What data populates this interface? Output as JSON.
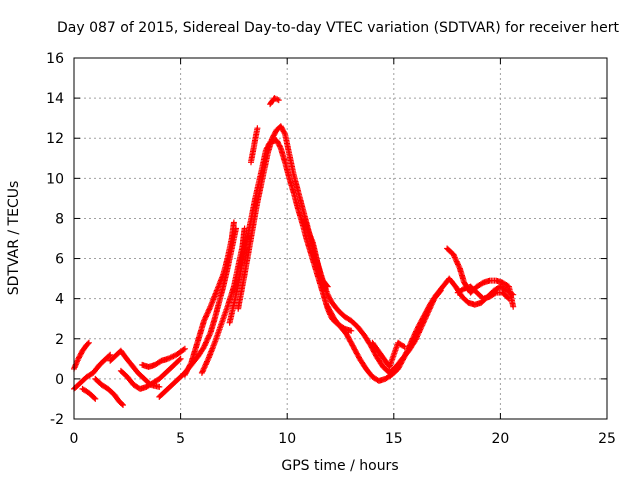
{
  "chart_data": {
    "type": "scatter",
    "title": "Day 087 of 2015, Sidereal Day-to-day VTEC variation (SDTVAR) for receiver hert",
    "xlabel": "GPS time / hours",
    "ylabel": "SDTVAR / TECUs",
    "xlim": [
      0,
      25
    ],
    "ylim": [
      -2,
      16
    ],
    "xticks": [
      0,
      5,
      10,
      15,
      20,
      25
    ],
    "yticks": [
      -2,
      0,
      2,
      4,
      6,
      8,
      10,
      12,
      14,
      16
    ],
    "grid": true,
    "marker": "+",
    "series": [
      {
        "name": "SDTVAR",
        "color": "#ff0000",
        "segments": [
          [
            [
              0.0,
              0.5
            ],
            [
              0.2,
              1.0
            ],
            [
              0.4,
              1.4
            ],
            [
              0.6,
              1.7
            ],
            [
              0.7,
              1.8
            ]
          ],
          [
            [
              0.0,
              -0.5
            ],
            [
              0.3,
              -0.2
            ],
            [
              0.6,
              0.1
            ],
            [
              0.9,
              0.3
            ],
            [
              1.2,
              0.7
            ],
            [
              1.5,
              1.0
            ],
            [
              1.7,
              1.2
            ]
          ],
          [
            [
              0.4,
              -0.5
            ],
            [
              0.7,
              -0.7
            ],
            [
              1.0,
              -1.0
            ]
          ],
          [
            [
              1.0,
              0.0
            ],
            [
              1.3,
              -0.3
            ],
            [
              1.6,
              -0.5
            ],
            [
              1.9,
              -0.8
            ],
            [
              2.1,
              -1.1
            ],
            [
              2.3,
              -1.3
            ]
          ],
          [
            [
              1.7,
              0.9
            ],
            [
              2.0,
              1.2
            ],
            [
              2.2,
              1.4
            ],
            [
              2.4,
              1.1
            ],
            [
              2.7,
              0.7
            ],
            [
              3.0,
              0.3
            ],
            [
              3.3,
              0.0
            ],
            [
              3.6,
              -0.3
            ],
            [
              4.0,
              -0.4
            ]
          ],
          [
            [
              2.2,
              0.4
            ],
            [
              2.5,
              0.1
            ],
            [
              2.8,
              -0.3
            ],
            [
              3.1,
              -0.5
            ],
            [
              3.4,
              -0.4
            ],
            [
              3.7,
              -0.2
            ],
            [
              4.0,
              0.0
            ],
            [
              4.3,
              0.3
            ],
            [
              4.6,
              0.6
            ],
            [
              5.0,
              1.0
            ]
          ],
          [
            [
              3.2,
              0.7
            ],
            [
              3.5,
              0.6
            ],
            [
              3.8,
              0.7
            ],
            [
              4.1,
              0.9
            ],
            [
              4.4,
              1.0
            ],
            [
              4.8,
              1.2
            ],
            [
              5.2,
              1.5
            ]
          ],
          [
            [
              4.0,
              -0.9
            ],
            [
              4.3,
              -0.6
            ],
            [
              4.6,
              -0.3
            ],
            [
              4.9,
              0.0
            ],
            [
              5.2,
              0.3
            ],
            [
              5.5,
              0.7
            ],
            [
              5.8,
              1.1
            ],
            [
              6.1,
              1.6
            ],
            [
              6.4,
              2.3
            ],
            [
              6.6,
              3.0
            ],
            [
              6.8,
              3.8
            ],
            [
              7.0,
              4.6
            ],
            [
              7.2,
              5.5
            ],
            [
              7.4,
              6.5
            ],
            [
              7.6,
              7.5
            ]
          ],
          [
            [
              5.2,
              0.2
            ],
            [
              5.5,
              0.8
            ],
            [
              5.7,
              1.5
            ],
            [
              5.9,
              2.2
            ],
            [
              6.1,
              2.9
            ],
            [
              6.4,
              3.6
            ],
            [
              6.7,
              4.4
            ],
            [
              7.0,
              5.2
            ],
            [
              7.2,
              6.0
            ],
            [
              7.4,
              7.0
            ],
            [
              7.5,
              7.8
            ]
          ],
          [
            [
              6.0,
              0.3
            ],
            [
              6.3,
              1.0
            ],
            [
              6.6,
              1.8
            ],
            [
              6.9,
              2.7
            ],
            [
              7.2,
              3.6
            ],
            [
              7.5,
              4.6
            ],
            [
              7.7,
              5.6
            ],
            [
              7.9,
              6.6
            ],
            [
              8.0,
              7.5
            ]
          ],
          [
            [
              7.3,
              2.8
            ],
            [
              7.6,
              4.2
            ],
            [
              7.9,
              5.8
            ],
            [
              8.2,
              7.4
            ],
            [
              8.5,
              9.0
            ],
            [
              8.8,
              10.4
            ],
            [
              9.0,
              11.4
            ],
            [
              9.2,
              11.8
            ],
            [
              9.5,
              11.9
            ],
            [
              9.7,
              11.5
            ],
            [
              9.9,
              10.8
            ],
            [
              10.1,
              10.0
            ],
            [
              10.3,
              9.3
            ],
            [
              10.5,
              8.5
            ],
            [
              10.7,
              7.8
            ],
            [
              10.9,
              7.0
            ],
            [
              11.1,
              6.3
            ],
            [
              11.3,
              5.6
            ],
            [
              11.5,
              4.9
            ],
            [
              11.7,
              4.2
            ],
            [
              11.9,
              3.5
            ],
            [
              12.1,
              3.0
            ],
            [
              12.4,
              2.7
            ],
            [
              12.7,
              2.5
            ],
            [
              13.0,
              2.4
            ]
          ],
          [
            [
              7.7,
              3.5
            ],
            [
              8.0,
              5.2
            ],
            [
              8.3,
              7.0
            ],
            [
              8.6,
              8.8
            ],
            [
              8.9,
              10.3
            ],
            [
              9.1,
              11.3
            ],
            [
              9.3,
              12.0
            ],
            [
              9.5,
              12.4
            ],
            [
              9.7,
              12.6
            ],
            [
              9.9,
              12.2
            ],
            [
              10.1,
              11.2
            ],
            [
              10.3,
              10.2
            ],
            [
              10.5,
              9.4
            ],
            [
              10.7,
              8.6
            ],
            [
              10.9,
              7.8
            ],
            [
              11.1,
              7.0
            ],
            [
              11.3,
              6.2
            ],
            [
              11.5,
              5.5
            ],
            [
              11.7,
              4.8
            ],
            [
              11.9,
              4.2
            ],
            [
              12.1,
              3.8
            ],
            [
              12.4,
              3.4
            ],
            [
              12.7,
              3.1
            ],
            [
              13.0,
              2.9
            ],
            [
              13.3,
              2.6
            ],
            [
              13.6,
              2.2
            ],
            [
              13.9,
              1.7
            ],
            [
              14.2,
              1.1
            ],
            [
              14.5,
              0.6
            ],
            [
              14.8,
              0.3
            ],
            [
              15.1,
              0.6
            ],
            [
              15.4,
              1.0
            ],
            [
              15.7,
              1.4
            ],
            [
              16.0,
              1.9
            ],
            [
              16.3,
              2.6
            ],
            [
              16.6,
              3.3
            ],
            [
              16.9,
              4.0
            ],
            [
              17.2,
              4.4
            ]
          ],
          [
            [
              8.3,
              10.8
            ],
            [
              8.6,
              12.5
            ]
          ],
          [
            [
              9.2,
              13.7
            ],
            [
              9.4,
              14.0
            ],
            [
              9.6,
              13.9
            ]
          ],
          [
            [
              10.8,
              7.9
            ],
            [
              11.2,
              6.8
            ],
            [
              11.6,
              5.0
            ],
            [
              11.9,
              4.6
            ]
          ],
          [
            [
              11.9,
              3.6
            ],
            [
              12.2,
              3.0
            ],
            [
              12.5,
              2.6
            ],
            [
              12.8,
              2.2
            ],
            [
              13.1,
              1.6
            ],
            [
              13.4,
              1.0
            ],
            [
              13.7,
              0.5
            ],
            [
              14.0,
              0.1
            ],
            [
              14.3,
              -0.1
            ],
            [
              14.6,
              0.0
            ],
            [
              14.9,
              0.2
            ],
            [
              15.2,
              0.5
            ],
            [
              15.5,
              1.1
            ],
            [
              15.8,
              1.8
            ],
            [
              16.1,
              2.5
            ],
            [
              16.4,
              3.1
            ],
            [
              16.7,
              3.7
            ],
            [
              17.0,
              4.2
            ],
            [
              17.3,
              4.6
            ],
            [
              17.6,
              5.0
            ],
            [
              17.9,
              4.6
            ],
            [
              18.2,
              4.1
            ],
            [
              18.5,
              3.8
            ],
            [
              18.8,
              3.7
            ],
            [
              19.1,
              3.8
            ],
            [
              19.4,
              4.1
            ],
            [
              19.7,
              4.4
            ],
            [
              20.0,
              4.6
            ],
            [
              20.3,
              4.4
            ],
            [
              20.6,
              4.2
            ]
          ],
          [
            [
              14.0,
              1.8
            ],
            [
              14.4,
              1.2
            ],
            [
              14.8,
              0.6
            ],
            [
              15.2,
              1.8
            ],
            [
              15.5,
              1.6
            ]
          ],
          [
            [
              17.5,
              6.5
            ],
            [
              17.8,
              6.2
            ],
            [
              18.1,
              5.5
            ],
            [
              18.3,
              4.8
            ],
            [
              18.6,
              4.3
            ],
            [
              18.9,
              4.6
            ],
            [
              19.2,
              4.8
            ],
            [
              19.5,
              4.9
            ],
            [
              19.8,
              4.9
            ],
            [
              20.1,
              4.8
            ],
            [
              20.4,
              4.6
            ],
            [
              20.6,
              3.6
            ]
          ],
          [
            [
              18.0,
              4.3
            ],
            [
              18.3,
              4.5
            ],
            [
              18.6,
              4.6
            ],
            [
              18.9,
              4.3
            ],
            [
              19.2,
              4.0
            ],
            [
              19.5,
              4.1
            ],
            [
              19.8,
              4.3
            ],
            [
              20.1,
              4.3
            ],
            [
              20.4,
              4.0
            ]
          ]
        ]
      }
    ]
  }
}
